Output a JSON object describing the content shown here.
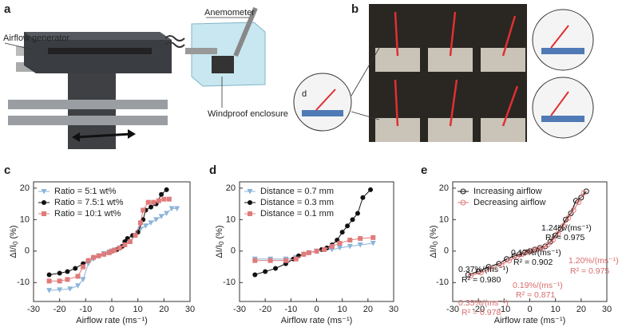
{
  "panels": {
    "a": "a",
    "b": "b",
    "airflow_generator": "Airflow generator",
    "anemometer": "Anemometer",
    "enclosure": "Windproof enclosure",
    "d": "d"
  },
  "chart_data": [
    {
      "type": "line",
      "panel": "c",
      "x_label": "Airflow rate (ms⁻¹)",
      "y_label": {
        "main": "ΔI/I",
        "sub": "0",
        "unit": " (%)"
      },
      "xlim": [
        -30,
        30
      ],
      "xticks": [
        -30,
        -20,
        -10,
        0,
        10,
        20,
        30
      ],
      "ylim": [
        -16,
        22
      ],
      "yticks": [
        -10,
        0,
        10,
        20
      ],
      "legend": "upper left",
      "series": [
        {
          "name": "Ratio = 5:1 wt%",
          "color": "#8bb4d9",
          "marker": "triangle-down",
          "x": [
            -24,
            -20,
            -16,
            -13,
            -11,
            -9,
            -7,
            -5,
            -3,
            -1,
            0,
            1,
            3,
            5,
            7,
            9,
            11,
            13,
            15,
            17,
            19,
            21,
            23,
            25
          ],
          "values": [
            -12.5,
            -12.3,
            -12,
            -11,
            -9,
            -4,
            -2.5,
            -1.5,
            -0.8,
            -0.3,
            0,
            0.3,
            1,
            2,
            3,
            5,
            7,
            8,
            9,
            10,
            11,
            12,
            13.5,
            13.5
          ]
        },
        {
          "name": "Ratio = 7.5:1 wt%",
          "color": "#111111",
          "marker": "circle",
          "x": [
            -24,
            -20,
            -17,
            -14,
            -11,
            -9,
            -7,
            -5,
            -3,
            -1,
            0,
            1,
            2,
            3,
            4,
            5,
            6,
            8,
            10,
            12,
            13,
            15,
            17,
            19,
            21
          ],
          "values": [
            -7.5,
            -7,
            -6.5,
            -5.5,
            -4,
            -3,
            -2,
            -1.5,
            -1,
            -0.5,
            0,
            0.3,
            0.5,
            1,
            1.5,
            3,
            4,
            5,
            6,
            10,
            13,
            14,
            15,
            18,
            19.5
          ]
        },
        {
          "name": "Ratio = 10:1 wt%",
          "color": "#e07b7b",
          "marker": "square",
          "x": [
            -24,
            -20,
            -17,
            -13,
            -11,
            -9,
            -7,
            -5,
            -3,
            -1,
            0,
            1,
            3,
            5,
            7,
            9,
            11,
            12,
            14,
            16,
            18,
            20,
            22
          ],
          "values": [
            -9.5,
            -9.5,
            -9,
            -8,
            -5,
            -3,
            -2,
            -1.5,
            -1,
            -0.5,
            0,
            0.3,
            1,
            2,
            3,
            5,
            9,
            13,
            15.5,
            15.5,
            16,
            16.5,
            16.5
          ]
        }
      ]
    },
    {
      "type": "line",
      "panel": "d",
      "x_label": "Airflow rate (ms⁻¹)",
      "y_label": {
        "main": "ΔI/I",
        "sub": "0",
        "unit": " (%)"
      },
      "xlim": [
        -30,
        30
      ],
      "xticks": [
        -30,
        -20,
        -10,
        0,
        10,
        20,
        30
      ],
      "ylim": [
        -16,
        22
      ],
      "yticks": [
        -10,
        0,
        10,
        20
      ],
      "legend": "upper left",
      "series": [
        {
          "name": "Distance = 0.7 mm",
          "color": "#8bb4d9",
          "marker": "triangle-down",
          "x": [
            -24,
            -18,
            -12,
            -8,
            -5,
            -3,
            0,
            3,
            6,
            9,
            13,
            17,
            22
          ],
          "values": [
            -2.5,
            -2.5,
            -2.5,
            -2,
            -1,
            -0.5,
            0,
            0.5,
            0.5,
            1,
            1.5,
            2,
            2.5
          ]
        },
        {
          "name": "Distance = 0.3 mm",
          "color": "#111111",
          "marker": "circle",
          "x": [
            -24,
            -20,
            -16,
            -12,
            -9,
            -7,
            -5,
            -3,
            0,
            2,
            4,
            6,
            8,
            10,
            12,
            14,
            16,
            18,
            21
          ],
          "values": [
            -7.5,
            -6.5,
            -5.5,
            -4,
            -2.5,
            -1.5,
            -1,
            -0.5,
            0,
            0.5,
            1,
            2,
            3.5,
            6,
            8,
            10,
            12,
            17,
            19.5
          ]
        },
        {
          "name": "Distance = 0.1 mm",
          "color": "#e07b7b",
          "marker": "square",
          "x": [
            -24,
            -18,
            -12,
            -8,
            -5,
            -3,
            0,
            3,
            6,
            9,
            13,
            17,
            22
          ],
          "values": [
            -3,
            -3,
            -3,
            -2.5,
            -1,
            -0.5,
            0,
            0.5,
            1.5,
            2.5,
            3.5,
            4,
            4.3
          ]
        }
      ]
    },
    {
      "type": "scatter",
      "panel": "e",
      "x_label": "Airflow rate (ms⁻¹)",
      "y_label": {
        "main": "ΔI/I",
        "sub": "0",
        "unit": " (%)"
      },
      "xlim": [
        -30,
        30
      ],
      "xticks": [
        -30,
        -20,
        -10,
        0,
        10,
        20,
        30
      ],
      "ylim": [
        -16,
        22
      ],
      "yticks": [
        -10,
        0,
        10,
        20
      ],
      "legend": "upper left",
      "series": [
        {
          "name": "Increasing airflow",
          "color": "#111111",
          "marker": "open-circle",
          "x": [
            -24,
            -20,
            -16,
            -12,
            -9,
            -6,
            -4,
            -2,
            0,
            2,
            4,
            6,
            8,
            10,
            12,
            14,
            16,
            18,
            20,
            22
          ],
          "values": [
            -7.5,
            -6.5,
            -5,
            -4,
            -2.5,
            -1.5,
            -1,
            -0.5,
            0,
            0.5,
            1,
            1.5,
            3,
            5,
            7,
            10,
            12,
            16,
            17,
            19
          ]
        },
        {
          "name": "Decreasing airflow",
          "color": "#e07b7b",
          "marker": "open-circle",
          "x": [
            -23,
            -19,
            -15,
            -11,
            -8,
            -5,
            -3,
            -1,
            1,
            3,
            5,
            7,
            9,
            11,
            13,
            15,
            17,
            19,
            21
          ],
          "values": [
            -7.8,
            -6.8,
            -5.5,
            -4.2,
            -3,
            -1.8,
            -1,
            -0.3,
            0.2,
            0.6,
            1,
            2,
            3.5,
            5.5,
            8,
            10.5,
            13,
            15.5,
            18.5
          ]
        }
      ],
      "annotations": [
        {
          "text": "1.24%/(ms⁻¹)",
          "color": "#111111"
        },
        {
          "text": "R² = 0.975",
          "color": "#111111"
        },
        {
          "text": "0.17%/(ms⁻¹)",
          "color": "#111111"
        },
        {
          "text": "R² = 0.902",
          "color": "#111111"
        },
        {
          "text": "0.37%/(ms⁻¹)",
          "color": "#111111"
        },
        {
          "text": "R² = 0.980",
          "color": "#111111"
        },
        {
          "text": "1.20%/(ms⁻¹)",
          "color": "#d96b6b"
        },
        {
          "text": "R² = 0.975",
          "color": "#d96b6b"
        },
        {
          "text": "0.19%/(ms⁻¹)",
          "color": "#d96b6b"
        },
        {
          "text": "R² = 0.871",
          "color": "#d96b6b"
        },
        {
          "text": "0.35%/(ms⁻¹)",
          "color": "#d96b6b"
        },
        {
          "text": "R² = 0.978",
          "color": "#d96b6b"
        }
      ]
    }
  ]
}
